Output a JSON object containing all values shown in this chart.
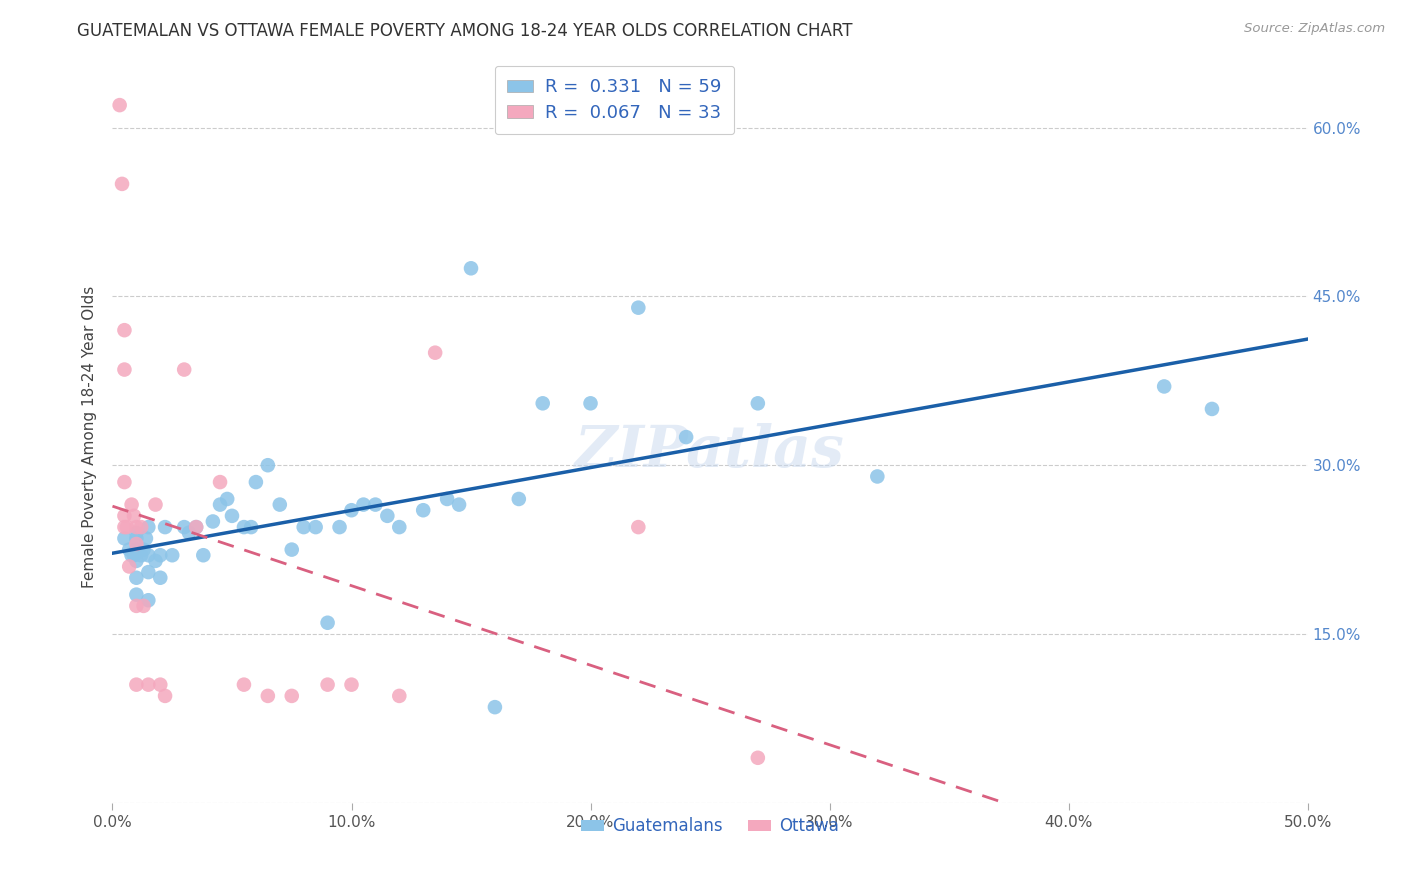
{
  "title": "GUATEMALAN VS OTTAWA FEMALE POVERTY AMONG 18-24 YEAR OLDS CORRELATION CHART",
  "source": "Source: ZipAtlas.com",
  "ylabel": "Female Poverty Among 18-24 Year Olds",
  "xlim": [
    0.0,
    0.5
  ],
  "ylim": [
    0.0,
    0.65
  ],
  "xticks": [
    0.0,
    0.1,
    0.2,
    0.3,
    0.4,
    0.5
  ],
  "xticklabels": [
    "0.0%",
    "10.0%",
    "20.0%",
    "30.0%",
    "40.0%",
    "50.0%"
  ],
  "yticks": [
    0.0,
    0.15,
    0.3,
    0.45,
    0.6
  ],
  "yticklabels": [
    "",
    "15.0%",
    "30.0%",
    "45.0%",
    "60.0%"
  ],
  "blue_color": "#8cc4e8",
  "pink_color": "#f4a8be",
  "blue_line_color": "#1a5fa8",
  "pink_line_color": "#d96080",
  "watermark": "ZIPatlas",
  "guatemalans_x": [
    0.005,
    0.007,
    0.008,
    0.009,
    0.01,
    0.01,
    0.01,
    0.01,
    0.01,
    0.01,
    0.012,
    0.013,
    0.014,
    0.015,
    0.015,
    0.015,
    0.015,
    0.018,
    0.02,
    0.02,
    0.022,
    0.025,
    0.03,
    0.032,
    0.035,
    0.038,
    0.042,
    0.045,
    0.048,
    0.05,
    0.055,
    0.058,
    0.06,
    0.065,
    0.07,
    0.075,
    0.08,
    0.085,
    0.09,
    0.095,
    0.1,
    0.105,
    0.11,
    0.115,
    0.12,
    0.13,
    0.14,
    0.145,
    0.15,
    0.16,
    0.17,
    0.18,
    0.2,
    0.22,
    0.24,
    0.27,
    0.32,
    0.44,
    0.46
  ],
  "guatemalans_y": [
    0.235,
    0.225,
    0.22,
    0.22,
    0.24,
    0.235,
    0.225,
    0.215,
    0.2,
    0.185,
    0.22,
    0.225,
    0.235,
    0.245,
    0.22,
    0.205,
    0.18,
    0.215,
    0.22,
    0.2,
    0.245,
    0.22,
    0.245,
    0.24,
    0.245,
    0.22,
    0.25,
    0.265,
    0.27,
    0.255,
    0.245,
    0.245,
    0.285,
    0.3,
    0.265,
    0.225,
    0.245,
    0.245,
    0.16,
    0.245,
    0.26,
    0.265,
    0.265,
    0.255,
    0.245,
    0.26,
    0.27,
    0.265,
    0.475,
    0.085,
    0.27,
    0.355,
    0.355,
    0.44,
    0.325,
    0.355,
    0.29,
    0.37,
    0.35
  ],
  "ottawa_x": [
    0.003,
    0.004,
    0.005,
    0.005,
    0.005,
    0.005,
    0.005,
    0.006,
    0.007,
    0.008,
    0.009,
    0.01,
    0.01,
    0.01,
    0.01,
    0.012,
    0.013,
    0.015,
    0.018,
    0.02,
    0.022,
    0.03,
    0.035,
    0.045,
    0.055,
    0.065,
    0.075,
    0.09,
    0.1,
    0.12,
    0.135,
    0.22,
    0.27
  ],
  "ottawa_y": [
    0.62,
    0.55,
    0.42,
    0.385,
    0.285,
    0.255,
    0.245,
    0.245,
    0.21,
    0.265,
    0.255,
    0.245,
    0.23,
    0.175,
    0.105,
    0.245,
    0.175,
    0.105,
    0.265,
    0.105,
    0.095,
    0.385,
    0.245,
    0.285,
    0.105,
    0.095,
    0.095,
    0.105,
    0.105,
    0.095,
    0.4,
    0.245,
    0.04
  ]
}
